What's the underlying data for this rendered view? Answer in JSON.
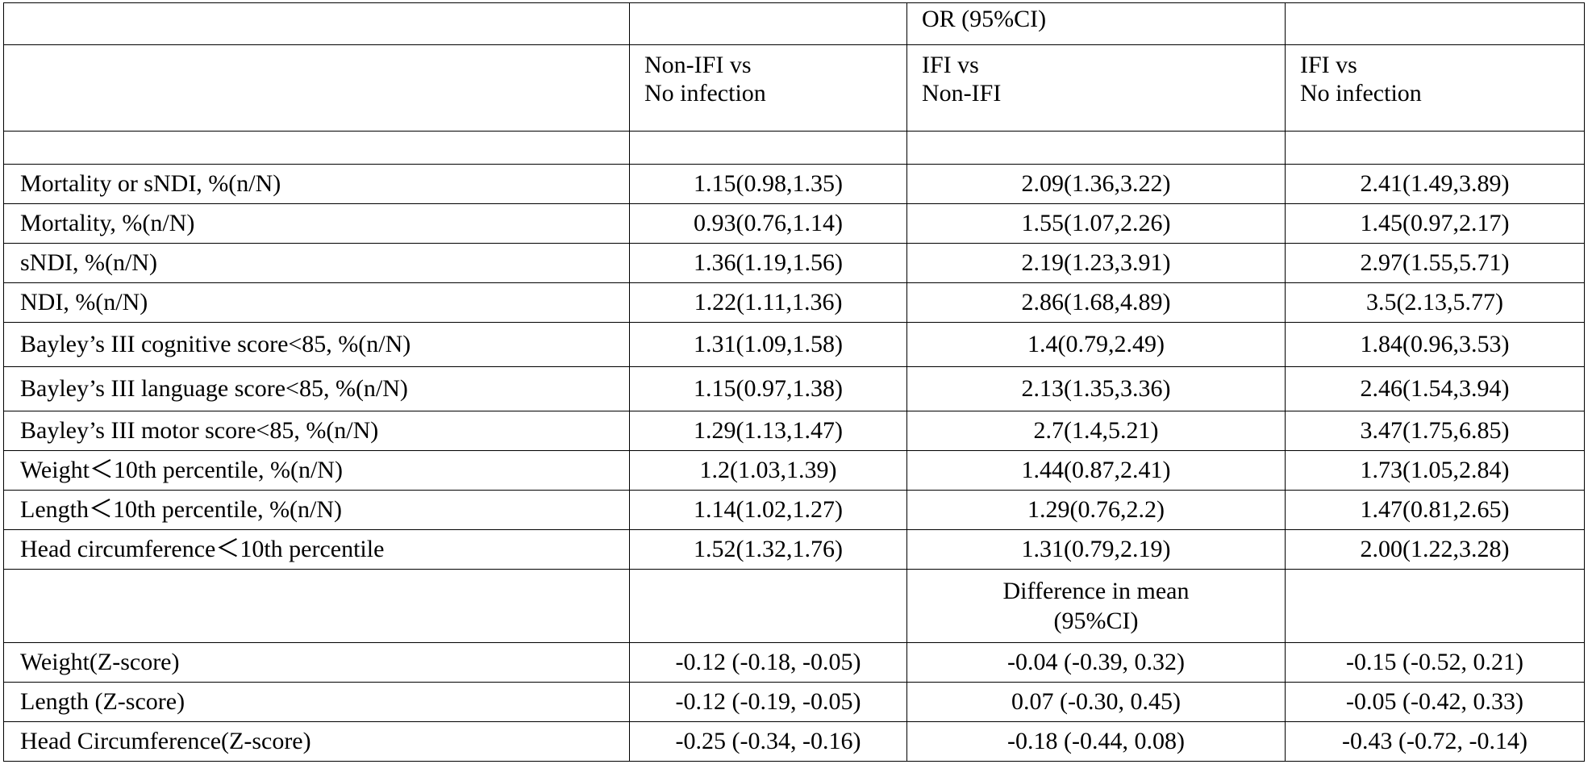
{
  "table": {
    "or_header": "OR (95%CI)",
    "comparisons": [
      {
        "line1": "Non-IFI vs",
        "line2": "No infection"
      },
      {
        "line1": "IFI vs",
        "line2": "Non-IFI"
      },
      {
        "line1": "IFI vs",
        "line2": "No infection"
      }
    ],
    "or_rows": [
      {
        "label": "Mortality or sNDI, %(n/N)",
        "values": [
          "1.15(0.98,1.35)",
          "2.09(1.36,3.22)",
          "2.41(1.49,3.89)"
        ]
      },
      {
        "label": "Mortality, %(n/N)",
        "values": [
          "0.93(0.76,1.14)",
          "1.55(1.07,2.26)",
          "1.45(0.97,2.17)"
        ]
      },
      {
        "label": "sNDI, %(n/N)",
        "values": [
          "1.36(1.19,1.56)",
          "2.19(1.23,3.91)",
          "2.97(1.55,5.71)"
        ]
      },
      {
        "label": "NDI, %(n/N)",
        "values": [
          "1.22(1.11,1.36)",
          "2.86(1.68,4.89)",
          "3.5(2.13,5.77)"
        ]
      },
      {
        "label": "Bayley’s III cognitive score<85, %(n/N)",
        "values": [
          "1.31(1.09,1.58)",
          "1.4(0.79,2.49)",
          "1.84(0.96,3.53)"
        ]
      },
      {
        "label": "Bayley’s III language score<85, %(n/N)",
        "values": [
          "1.15(0.97,1.38)",
          "2.13(1.35,3.36)",
          "2.46(1.54,3.94)"
        ]
      },
      {
        "label": "Bayley’s III motor score<85, %(n/N)",
        "values": [
          "1.29(1.13,1.47)",
          "2.7(1.4,5.21)",
          "3.47(1.75,6.85)"
        ]
      },
      {
        "label": "Weight＜10th percentile, %(n/N)",
        "values": [
          "1.2(1.03,1.39)",
          "1.44(0.87,2.41)",
          "1.73(1.05,2.84)"
        ]
      },
      {
        "label": "Length＜10th percentile, %(n/N)",
        "values": [
          "1.14(1.02,1.27)",
          "1.29(0.76,2.2)",
          "1.47(0.81,2.65)"
        ]
      },
      {
        "label": "Head circumference＜10th percentile",
        "values": [
          "1.52(1.32,1.76)",
          "1.31(0.79,2.19)",
          "2.00(1.22,3.28)"
        ]
      }
    ],
    "diff_header": {
      "line1": "Difference in mean",
      "line2": "(95%CI)"
    },
    "diff_rows": [
      {
        "label": "Weight(Z-score)",
        "values": [
          "-0.12 (-0.18, -0.05)",
          "-0.04 (-0.39, 0.32)",
          "-0.15 (-0.52, 0.21)"
        ]
      },
      {
        "label": "Length (Z-score)",
        "values": [
          "-0.12 (-0.19, -0.05)",
          "0.07 (-0.30, 0.45)",
          "-0.05 (-0.42, 0.33)"
        ]
      },
      {
        "label": "Head Circumference(Z-score)",
        "values": [
          "-0.25 (-0.34, -0.16)",
          "-0.18 (-0.44, 0.08)",
          "-0.43 (-0.72, -0.14)"
        ]
      }
    ]
  }
}
